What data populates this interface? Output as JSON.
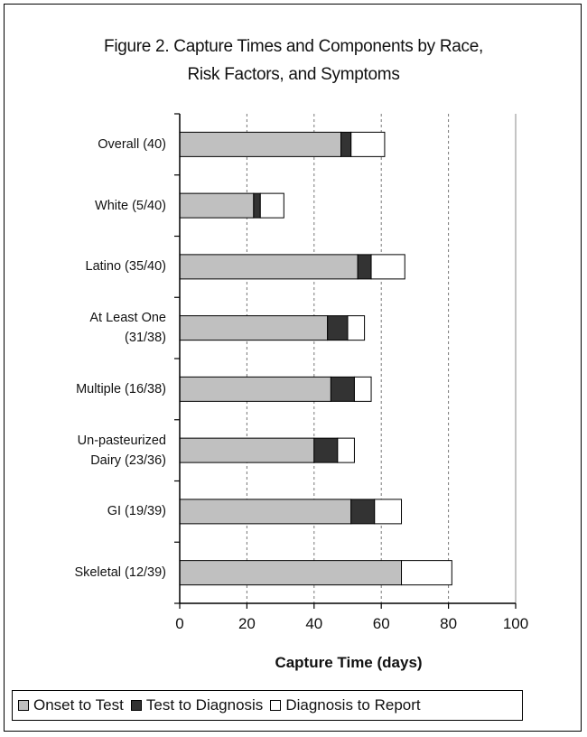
{
  "chart_data": {
    "type": "bar",
    "orientation": "horizontal",
    "stacked": true,
    "title_lines": [
      "Figure 2. Capture Times and Components by Race,",
      "Risk Factors, and Symptoms"
    ],
    "xlabel": "Capture Time (days)",
    "xlim": [
      0,
      100
    ],
    "xticks": [
      0,
      20,
      40,
      60,
      80,
      100
    ],
    "grid": "vertical-dashed",
    "legend_position": "bottom",
    "categories": [
      [
        "Overall (40)"
      ],
      [
        "White (5/40)"
      ],
      [
        "Latino (35/40)"
      ],
      [
        "At Least One",
        "(31/38)"
      ],
      [
        "Multiple (16/38)"
      ],
      [
        "Un-pasteurized",
        "Dairy  (23/36)"
      ],
      [
        "GI  (19/39)"
      ],
      [
        "Skeletal (12/39)"
      ]
    ],
    "series": [
      {
        "name": "Onset to Test",
        "color": "#c0c0c0",
        "values": [
          48,
          22,
          53,
          44,
          45,
          40,
          51,
          66
        ]
      },
      {
        "name": "Test to Diagnosis",
        "color": "#333333",
        "values": [
          3,
          2,
          4,
          6,
          7,
          7,
          7,
          0
        ]
      },
      {
        "name": "Diagnosis to Report",
        "color": "#ffffff",
        "values": [
          10,
          7,
          10,
          5,
          5,
          5,
          8,
          15
        ]
      }
    ]
  }
}
